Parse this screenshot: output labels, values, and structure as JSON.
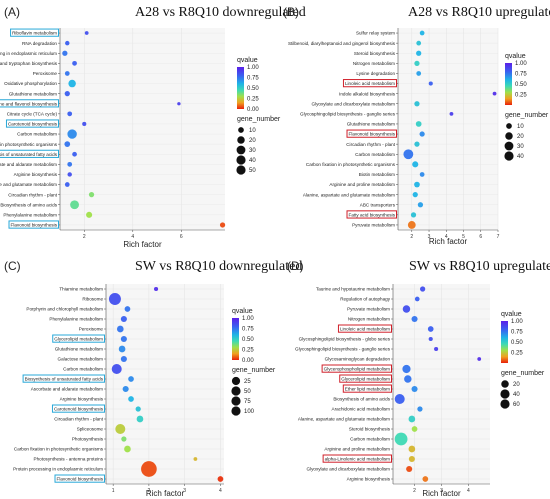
{
  "legend_titles": {
    "color": "qvalue",
    "size": "gene_number"
  },
  "chart_data": [
    {
      "type": "scatter",
      "panel_label": "(A)",
      "title": "A28 vs R8Q10 downregulated",
      "xlabel": "Rich factor",
      "xticks": [
        2,
        4,
        6
      ],
      "xlim": [
        1,
        7.8
      ],
      "categories": [
        "Riboflavin metabolism",
        "RNA degradation",
        "Protein processing in endoplasmic reticulum",
        "Phenylalanine, tyrosine and tryptophan biosynthesis",
        "Peroxisome",
        "Oxidative phosphorylation",
        "Glutathione metabolism",
        "Flavone and flavonol biosynthesis",
        "Citrate cycle (TCA cycle)",
        "Carotenoid biosynthesis",
        "Carbon metabolism",
        "Carbon fixation in photosynthetic organisms",
        "Biosynthesis of unsaturated fatty acids",
        "Ascorbate and aldarate metabolism",
        "Arginine biosynthesis",
        "Alanine, aspartate and glutamate metabolism",
        "Circadian rhythm - plant",
        "Biosynthesis of amino acids",
        "Phenylalanine metabolism",
        "Flavonoid biosynthesis"
      ],
      "highlighted": [
        "Riboflavin metabolism",
        "Flavone and flavonol biosynthesis",
        "Carotenoid biosynthesis",
        "Biosynthesis of unsaturated fatty acids",
        "Flavonoid biosynthesis"
      ],
      "highlight_color": "#29a8d8",
      "x": [
        2.1,
        1.3,
        1.2,
        1.6,
        1.3,
        1.5,
        1.3,
        5.9,
        1.4,
        2.0,
        1.5,
        1.3,
        1.6,
        1.4,
        1.4,
        1.3,
        2.3,
        1.6,
        2.2,
        7.7
      ],
      "gene_number": [
        3,
        5,
        8,
        6,
        6,
        20,
        8,
        2,
        6,
        4,
        35,
        10,
        6,
        6,
        5,
        6,
        8,
        30,
        12,
        8
      ],
      "qvalue": [
        0.85,
        0.8,
        0.75,
        0.8,
        0.75,
        0.6,
        0.8,
        0.9,
        0.8,
        0.85,
        0.7,
        0.75,
        0.8,
        0.75,
        0.85,
        0.8,
        0.35,
        0.4,
        0.3,
        0.05
      ],
      "legend": {
        "qvalue_ticks": [
          "1.00",
          "0.75",
          "0.50",
          "0.25",
          "0.00"
        ],
        "gene_number_ticks": [
          10,
          20,
          30,
          40,
          50
        ]
      }
    },
    {
      "type": "scatter",
      "panel_label": "(B)",
      "title": "A28 vs R8Q10 upregulated",
      "xlabel": "Rich factor",
      "xticks": [
        2,
        3,
        4,
        5,
        6,
        7
      ],
      "xlim": [
        1.2,
        7
      ],
      "categories": [
        "Sulfur relay system",
        "Stilbenoid, diarylheptanoid and gingerol biosynthesis",
        "Steroid biosynthesis",
        "Nitrogen metabolism",
        "Lysine degradation",
        "Linoleic acid metabolism",
        "Indole alkaloid biosynthesis",
        "Glyoxylate and dicarboxylate metabolism",
        "Glycosphingolipid biosynthesis - ganglio series",
        "Glutathione metabolism",
        "Flavonoid biosynthesis",
        "Circadian rhythm - plant",
        "Carbon metabolism",
        "Carbon fixation in photosynthetic organisms",
        "Biotin metabolism",
        "Arginine and proline metabolism",
        "Alanine, aspartate and glutamate metabolism",
        "ABC transporters",
        "Fatty acid biosynthesis",
        "Pyruvate metabolism"
      ],
      "highlighted": [
        "Linoleic acid metabolism",
        "Flavonoid biosynthesis",
        "Fatty acid biosynthesis"
      ],
      "highlight_color": "#d0202a",
      "x": [
        2.6,
        2.4,
        2.4,
        2.3,
        2.4,
        3.1,
        6.8,
        2.3,
        4.3,
        2.4,
        2.6,
        2.3,
        1.8,
        2.2,
        2.6,
        2.3,
        2.2,
        2.5,
        2.1,
        2.0
      ],
      "gene_number": [
        6,
        6,
        8,
        8,
        6,
        4,
        3,
        8,
        3,
        10,
        8,
        8,
        38,
        12,
        6,
        10,
        8,
        8,
        8,
        22
      ],
      "qvalue": [
        0.6,
        0.55,
        0.6,
        0.5,
        0.65,
        0.8,
        0.95,
        0.55,
        0.9,
        0.5,
        0.7,
        0.55,
        0.75,
        0.6,
        0.7,
        0.6,
        0.6,
        0.65,
        0.55,
        0.1
      ],
      "legend": {
        "qvalue_ticks": [
          "1.00",
          "0.75",
          "0.50",
          "0.25"
        ],
        "gene_number_ticks": [
          10,
          20,
          30,
          40
        ]
      }
    },
    {
      "type": "scatter",
      "panel_label": "(C)",
      "title": "SW vs R8Q10 downregulated",
      "xlabel": "Rich factor",
      "xticks": [
        1,
        2,
        3,
        4
      ],
      "xlim": [
        0.8,
        4.1
      ],
      "categories": [
        "Thiamine metabolism",
        "Ribosome",
        "Porphyrin and chlorophyll metabolism",
        "Phenylalanine metabolism",
        "Peroxisome",
        "Glycerolipid metabolism",
        "Glutathione metabolism",
        "Galactose metabolism",
        "Carbon metabolism",
        "Biosynthesis of unsaturated fatty acids",
        "Ascorbate and aldarate metabolism",
        "Arginine biosynthesis",
        "Carotenoid biosynthesis",
        "Circadian rhythm - plant",
        "Spliceosome",
        "Photosynthesis",
        "Carbon fixation in photosynthetic organisms",
        "Photosynthesis - antenna proteins",
        "Protein processing in endoplasmic reticulum",
        "Flavonoid biosynthesis"
      ],
      "highlighted": [
        "Glycerolipid metabolism",
        "Biosynthesis of unsaturated fatty acids",
        "Carotenoid biosynthesis",
        "Flavonoid biosynthesis"
      ],
      "highlight_color": "#29a8d8",
      "x": [
        2.2,
        1.05,
        1.4,
        1.3,
        1.2,
        1.3,
        1.25,
        1.3,
        1.1,
        1.5,
        1.35,
        1.5,
        1.7,
        1.75,
        1.2,
        1.3,
        1.4,
        3.3,
        2.0,
        4.0
      ],
      "gene_number": [
        4,
        60,
        10,
        12,
        15,
        12,
        15,
        12,
        40,
        10,
        12,
        10,
        8,
        15,
        40,
        8,
        15,
        3,
        110,
        10
      ],
      "qvalue": [
        0.95,
        0.85,
        0.75,
        0.8,
        0.75,
        0.75,
        0.7,
        0.75,
        0.85,
        0.7,
        0.7,
        0.6,
        0.55,
        0.5,
        0.25,
        0.35,
        0.3,
        0.2,
        0.05,
        0.02
      ],
      "legend": {
        "qvalue_ticks": [
          "1.00",
          "0.75",
          "0.50",
          "0.25",
          "0.00"
        ],
        "gene_number_ticks": [
          25,
          50,
          75,
          100
        ]
      }
    },
    {
      "type": "scatter",
      "panel_label": "(D)",
      "title": "SW vs R8Q10 upregulated",
      "xlabel": "Rich factor",
      "xticks": [
        2,
        3,
        4
      ],
      "xlim": [
        1.2,
        4.8
      ],
      "categories": [
        "Taurine and hypotaurine metabolism",
        "Regulation of autophagy",
        "Pyruvate metabolism",
        "Nitrogen metabolism",
        "Linoleic acid metabolism",
        "Glycosphingolipid biosynthesis - globo series",
        "Glycosphingolipid biosynthesis - ganglio series",
        "Glycosaminoglycan degradation",
        "Glycerophospholipid metabolism",
        "Glycerolipid metabolism",
        "Ether lipid metabolism",
        "Biosynthesis of amino acids",
        "Arachidonic acid metabolism",
        "Alanine, aspartate and glutamate metabolism",
        "Steroid biosynthesis",
        "Carbon metabolism",
        "Arginine and proline metabolism",
        "alpha-Linolenic acid metabolism",
        "Glyoxylate and dicarboxylate metabolism",
        "Arginine biosynthesis"
      ],
      "highlighted": [
        "Linoleic acid metabolism",
        "Glycerophospholipid metabolism",
        "Glycerolipid metabolism",
        "Ether lipid metabolism",
        "alpha-Linolenic acid metabolism"
      ],
      "highlight_color": "#d0202a",
      "x": [
        2.3,
        2.1,
        1.7,
        2.0,
        2.6,
        2.6,
        2.8,
        4.4,
        1.7,
        1.75,
        2.0,
        1.45,
        2.2,
        1.9,
        2.0,
        1.5,
        1.9,
        1.9,
        1.8,
        2.4
      ],
      "gene_number": [
        8,
        6,
        20,
        12,
        10,
        4,
        4,
        3,
        25,
        20,
        12,
        40,
        8,
        15,
        10,
        70,
        15,
        12,
        12,
        10
      ],
      "qvalue": [
        0.85,
        0.8,
        0.85,
        0.75,
        0.8,
        0.85,
        0.9,
        0.95,
        0.75,
        0.75,
        0.7,
        0.8,
        0.7,
        0.5,
        0.3,
        0.45,
        0.2,
        0.2,
        0.05,
        0.1
      ],
      "legend": {
        "qvalue_ticks": [
          "1.00",
          "0.75",
          "0.50",
          "0.25"
        ],
        "gene_number_ticks": [
          20,
          40,
          60
        ]
      }
    }
  ]
}
